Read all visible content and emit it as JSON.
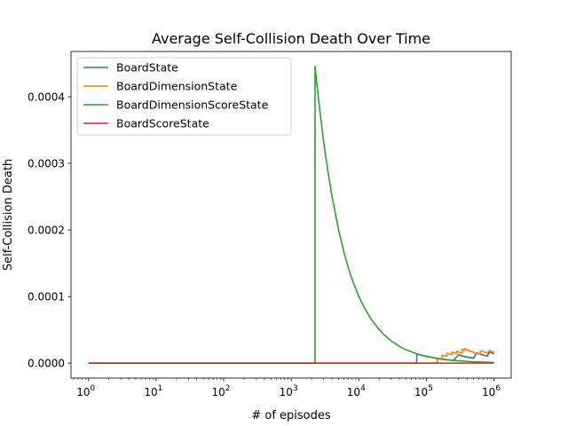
{
  "chart_data": {
    "type": "line",
    "title": "Average Self-Collision Death Over Time",
    "xlabel": "# of episodes",
    "ylabel": "Self-Collision Death",
    "xscale": "log",
    "xlim": [
      0.55,
      1800000
    ],
    "ylim": [
      -2.25e-05,
      0.000468
    ],
    "xticks": [
      {
        "value": 1,
        "base": "10",
        "exp": "0"
      },
      {
        "value": 10,
        "base": "10",
        "exp": "1"
      },
      {
        "value": 100,
        "base": "10",
        "exp": "2"
      },
      {
        "value": 1000,
        "base": "10",
        "exp": "3"
      },
      {
        "value": 10000,
        "base": "10",
        "exp": "4"
      },
      {
        "value": 100000,
        "base": "10",
        "exp": "5"
      },
      {
        "value": 1000000,
        "base": "10",
        "exp": "6"
      }
    ],
    "yticks": [
      {
        "value": 0,
        "label": "0.0000"
      },
      {
        "value": 0.0001,
        "label": "0.0001"
      },
      {
        "value": 0.0002,
        "label": "0.0002"
      },
      {
        "value": 0.0003,
        "label": "0.0003"
      },
      {
        "value": 0.0004,
        "label": "0.0004"
      }
    ],
    "legend": "upper-left",
    "grid": false,
    "series": [
      {
        "name": "BoardState",
        "color": "#1f77b4",
        "x": [
          1,
          72000,
          72000,
          72001,
          150000,
          200000,
          230000,
          250000,
          300000,
          330000,
          380000,
          420000,
          460000,
          500000,
          550000,
          600000,
          650000,
          700000,
          750000,
          800000,
          850000,
          900000,
          1000000
        ],
        "y": [
          0,
          0,
          1.35e-05,
          1.35e-05,
          6.5e-06,
          4.9e-06,
          4.2e-06,
          4e-06,
          1.25e-05,
          1.11e-05,
          9.6e-06,
          8.7e-06,
          7.9e-06,
          7.3e-06,
          1.53e-05,
          1.4e-05,
          1.29e-05,
          1.2e-05,
          1.12e-05,
          1.05e-05,
          1.65e-05,
          1.56e-05,
          1.4e-05
        ]
      },
      {
        "name": "BoardDimensionState",
        "color": "#ff7f0e",
        "x": [
          1,
          145000,
          145000,
          170000,
          170000,
          200000,
          200000,
          240000,
          240000,
          280000,
          280000,
          340000,
          340000,
          370000,
          370000,
          400000,
          450000,
          500000,
          550000,
          600000,
          650000,
          700000,
          750000,
          800000,
          850000,
          900000,
          950000,
          1000000
        ],
        "y": [
          0,
          0,
          6.9e-06,
          5.9e-06,
          1.18e-05,
          1e-05,
          1.5e-05,
          1.25e-05,
          1.67e-05,
          1.43e-05,
          1.79e-05,
          1.47e-05,
          2.06e-05,
          1.9e-05,
          2.16e-05,
          2e-05,
          1.78e-05,
          1.6e-05,
          1.45e-05,
          1.33e-05,
          1.85e-05,
          1.72e-05,
          1.6e-05,
          1.5e-05,
          1.88e-05,
          1.78e-05,
          1.68e-05,
          1.6e-05
        ]
      },
      {
        "name": "BoardDimensionScoreState",
        "color": "#2ca02c",
        "x": [
          1,
          2250,
          2250,
          2300,
          2600,
          3000,
          3500,
          4000,
          5000,
          6000,
          7000,
          8000,
          10000,
          12000,
          15000,
          20000,
          25000,
          30000,
          40000,
          50000,
          70000,
          100000,
          150000,
          200000,
          300000,
          400000,
          500000,
          700000,
          1000000
        ],
        "y": [
          0,
          0,
          0.000446,
          0.000436,
          0.000386,
          0.000334,
          0.000287,
          0.000251,
          0.000201,
          0.000167,
          0.000143,
          0.000125,
          0.0001,
          8.36e-05,
          6.69e-05,
          5.02e-05,
          4.01e-05,
          3.34e-05,
          2.51e-05,
          2.01e-05,
          1.43e-05,
          1e-05,
          6.7e-06,
          5e-06,
          3.4e-06,
          2.5e-06,
          2e-06,
          1.4e-06,
          1e-06
        ]
      },
      {
        "name": "BoardScoreState",
        "color": "#d62728",
        "x": [
          1,
          1000000
        ],
        "y": [
          0,
          0
        ]
      }
    ]
  }
}
